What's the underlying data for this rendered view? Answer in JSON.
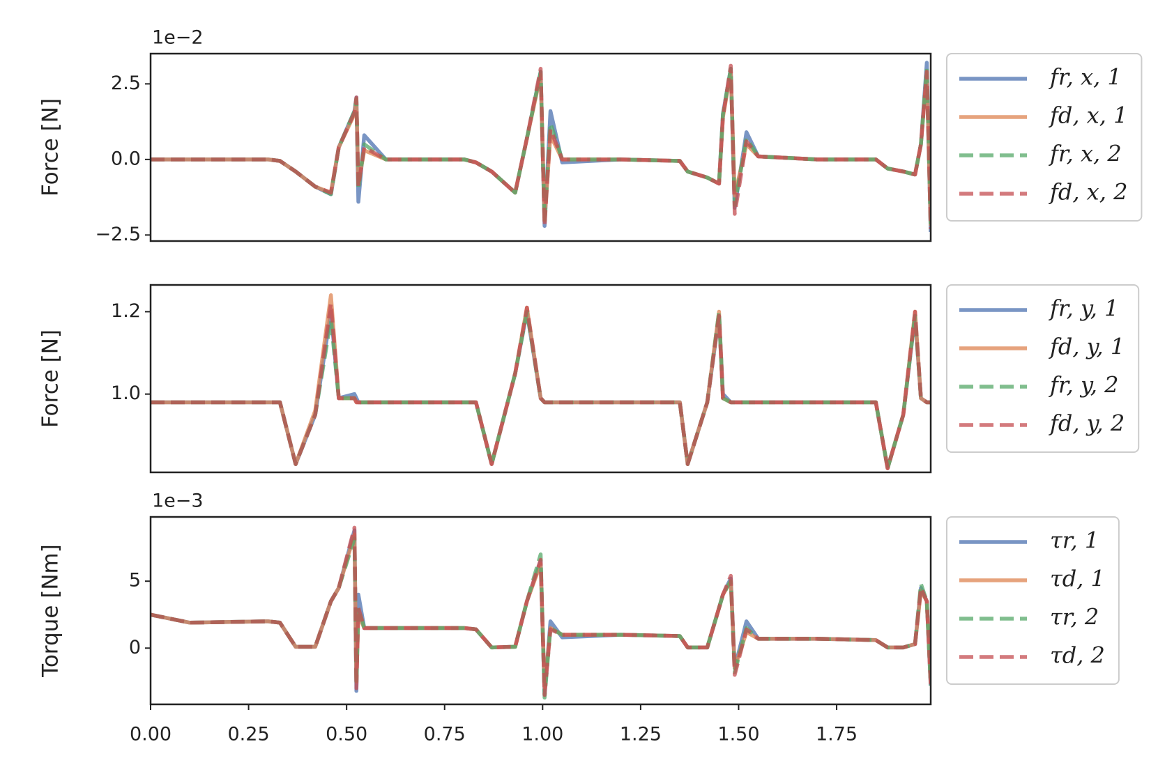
{
  "chart_data": [
    {
      "type": "line",
      "offset_label": "1e−2",
      "ylabel": "Force [N]",
      "x": [
        0,
        0.1,
        0.3,
        0.33,
        0.37,
        0.42,
        0.46,
        0.48,
        0.52,
        0.525,
        0.53,
        0.545,
        0.6,
        0.8,
        0.83,
        0.87,
        0.93,
        0.96,
        0.995,
        1.005,
        1.02,
        1.05,
        1.2,
        1.35,
        1.37,
        1.42,
        1.45,
        1.46,
        1.48,
        1.49,
        1.52,
        1.55,
        1.7,
        1.85,
        1.88,
        1.92,
        1.95,
        1.965,
        1.98,
        1.99
      ],
      "xlim": [
        0,
        1.99
      ],
      "ylim": [
        -2.7,
        3.5
      ],
      "yticks": [
        {
          "value": -2.5,
          "label": "−2.5"
        },
        {
          "value": 0,
          "label": "0.0"
        },
        2.5
      ],
      "legend": "outside right",
      "series": [
        {
          "name": "fr, x, 1",
          "color": "#4c72b0",
          "linestyle": "solid",
          "values": [
            0,
            0,
            0,
            -0.05,
            -0.4,
            -0.9,
            -1.15,
            0.4,
            1.6,
            2.05,
            -1.4,
            0.8,
            0,
            0,
            -0.1,
            -0.4,
            -1.1,
            0.7,
            2.9,
            -2.2,
            1.6,
            -0.1,
            0,
            -0.05,
            -0.4,
            -0.6,
            -0.8,
            1.5,
            3.0,
            -1.6,
            0.9,
            0.1,
            0,
            0,
            -0.3,
            -0.4,
            -0.5,
            0.5,
            3.2,
            -2.4
          ]
        },
        {
          "name": "fd, x, 1",
          "color": "#dd8452",
          "linestyle": "solid",
          "values": [
            0,
            0,
            0,
            -0.05,
            -0.4,
            -0.9,
            -1.1,
            0.4,
            1.5,
            2.0,
            -0.8,
            0.3,
            0,
            0,
            -0.1,
            -0.4,
            -1.1,
            0.7,
            2.8,
            -2.0,
            0.8,
            0,
            0,
            -0.05,
            -0.4,
            -0.6,
            -0.8,
            1.4,
            2.9,
            -1.2,
            0.5,
            0.1,
            0,
            0,
            -0.3,
            -0.4,
            -0.5,
            0.5,
            2.9,
            -2.2
          ]
        },
        {
          "name": "fr, x, 2",
          "color": "#55a868",
          "linestyle": "dashed",
          "values": [
            0,
            0,
            0,
            -0.05,
            -0.4,
            -0.9,
            -1.15,
            0.4,
            1.6,
            2.0,
            -1.0,
            0.5,
            0,
            0,
            -0.1,
            -0.4,
            -1.1,
            0.7,
            2.9,
            -2.1,
            1.2,
            0,
            0,
            -0.05,
            -0.4,
            -0.6,
            -0.8,
            1.5,
            3.0,
            -1.5,
            0.7,
            0.1,
            0,
            0,
            -0.3,
            -0.4,
            -0.5,
            0.5,
            3.0,
            -2.3
          ]
        },
        {
          "name": "fd, x, 2",
          "color": "#c44e52",
          "linestyle": "dashed",
          "values": [
            0,
            0,
            0,
            -0.05,
            -0.4,
            -0.9,
            -1.1,
            0.4,
            1.55,
            2.05,
            -0.9,
            0.4,
            0,
            0,
            -0.1,
            -0.4,
            -1.1,
            0.7,
            3.0,
            -2.2,
            1.0,
            0,
            0,
            -0.05,
            -0.4,
            -0.6,
            -0.8,
            1.4,
            3.1,
            -1.8,
            0.6,
            0.1,
            0,
            0,
            -0.3,
            -0.4,
            -0.5,
            0.5,
            2.9,
            -2.3
          ]
        }
      ]
    },
    {
      "type": "line",
      "ylabel": "Force [N]",
      "x": [
        0,
        0.1,
        0.3,
        0.33,
        0.37,
        0.42,
        0.46,
        0.48,
        0.52,
        0.525,
        0.53,
        0.545,
        0.6,
        0.8,
        0.83,
        0.87,
        0.93,
        0.96,
        0.995,
        1.005,
        1.02,
        1.05,
        1.2,
        1.35,
        1.37,
        1.42,
        1.45,
        1.46,
        1.48,
        1.49,
        1.52,
        1.55,
        1.7,
        1.85,
        1.88,
        1.92,
        1.95,
        1.965,
        1.98,
        1.99
      ],
      "xlim": [
        0,
        1.99
      ],
      "ylim": [
        0.81,
        1.265
      ],
      "yticks": [
        {
          "value": 1,
          "label": "1.0"
        },
        1.2
      ],
      "legend": "outside right",
      "series": [
        {
          "name": "fr, y, 1",
          "color": "#4c72b0",
          "linestyle": "solid",
          "values": [
            0.98,
            0.98,
            0.98,
            0.98,
            0.83,
            0.95,
            1.2,
            0.99,
            1.0,
            0.99,
            0.98,
            0.98,
            0.98,
            0.98,
            0.98,
            0.83,
            1.05,
            1.2,
            0.99,
            0.98,
            0.98,
            0.98,
            0.98,
            0.98,
            0.83,
            0.98,
            1.19,
            1.0,
            0.98,
            0.98,
            0.98,
            0.98,
            0.98,
            0.98,
            0.82,
            0.95,
            1.19,
            0.99,
            0.98,
            0.98
          ]
        },
        {
          "name": "fd, y, 1",
          "color": "#dd8452",
          "linestyle": "solid",
          "values": [
            0.98,
            0.98,
            0.98,
            0.98,
            0.83,
            0.96,
            1.24,
            0.99,
            0.99,
            0.98,
            0.98,
            0.98,
            0.98,
            0.98,
            0.98,
            0.83,
            1.05,
            1.21,
            0.99,
            0.98,
            0.98,
            0.98,
            0.98,
            0.98,
            0.83,
            0.98,
            1.2,
            0.99,
            0.98,
            0.98,
            0.98,
            0.98,
            0.98,
            0.98,
            0.82,
            0.95,
            1.2,
            0.99,
            0.98,
            0.98
          ]
        },
        {
          "name": "fr, y, 2",
          "color": "#55a868",
          "linestyle": "dashed",
          "values": [
            0.98,
            0.98,
            0.98,
            0.98,
            0.83,
            0.95,
            1.18,
            0.99,
            0.99,
            0.98,
            0.98,
            0.98,
            0.98,
            0.98,
            0.98,
            0.83,
            1.05,
            1.2,
            0.99,
            0.98,
            0.98,
            0.98,
            0.98,
            0.98,
            0.83,
            0.98,
            1.2,
            0.99,
            0.98,
            0.98,
            0.98,
            0.98,
            0.98,
            0.98,
            0.82,
            0.95,
            1.19,
            0.99,
            0.98,
            0.98
          ]
        },
        {
          "name": "fd, y, 2",
          "color": "#c44e52",
          "linestyle": "dashed",
          "values": [
            0.98,
            0.98,
            0.98,
            0.98,
            0.83,
            0.95,
            1.22,
            0.99,
            0.99,
            0.98,
            0.98,
            0.98,
            0.98,
            0.98,
            0.98,
            0.83,
            1.05,
            1.21,
            0.99,
            0.98,
            0.98,
            0.98,
            0.98,
            0.98,
            0.83,
            0.98,
            1.19,
            0.99,
            0.98,
            0.98,
            0.98,
            0.98,
            0.98,
            0.98,
            0.82,
            0.95,
            1.2,
            0.99,
            0.98,
            0.98
          ]
        }
      ]
    },
    {
      "type": "line",
      "offset_label": "1e−3",
      "ylabel": "Torque [Nm]",
      "x": [
        0,
        0.1,
        0.3,
        0.33,
        0.37,
        0.42,
        0.46,
        0.48,
        0.52,
        0.525,
        0.53,
        0.545,
        0.6,
        0.8,
        0.83,
        0.87,
        0.93,
        0.96,
        0.995,
        1.005,
        1.02,
        1.05,
        1.2,
        1.35,
        1.37,
        1.42,
        1.45,
        1.46,
        1.48,
        1.49,
        1.52,
        1.55,
        1.7,
        1.85,
        1.88,
        1.92,
        1.95,
        1.965,
        1.98,
        1.99
      ],
      "xlim": [
        0,
        1.99
      ],
      "ylim": [
        -4.2,
        9.8
      ],
      "yticks": [
        0,
        5
      ],
      "xticks": [
        {
          "value": 0,
          "label": "0.00"
        },
        {
          "value": 0.25,
          "label": "0.25"
        },
        {
          "value": 0.5,
          "label": "0.50"
        },
        {
          "value": 0.75,
          "label": "0.75"
        },
        {
          "value": 1,
          "label": "1.00"
        },
        {
          "value": 1.25,
          "label": "1.25"
        },
        {
          "value": 1.5,
          "label": "1.50"
        },
        {
          "value": 1.75,
          "label": "1.75"
        }
      ],
      "legend": "outside right",
      "series": [
        {
          "name": "τr, 1",
          "color": "#4c72b0",
          "linestyle": "solid",
          "values": [
            2.5,
            1.9,
            2.0,
            1.9,
            0.1,
            0.1,
            3.5,
            4.5,
            8.8,
            -3.2,
            4.0,
            1.5,
            1.5,
            1.5,
            1.4,
            0.05,
            0.1,
            3.5,
            6.5,
            -3.5,
            2.0,
            0.8,
            1.0,
            0.9,
            0.05,
            0.05,
            3.0,
            4.0,
            5.2,
            -1.5,
            2.0,
            0.7,
            0.7,
            0.6,
            0.05,
            0.05,
            0.3,
            4.5,
            3.5,
            -2.8
          ]
        },
        {
          "name": "τd, 1",
          "color": "#dd8452",
          "linestyle": "solid",
          "values": [
            2.5,
            1.9,
            2.0,
            1.9,
            0.1,
            0.1,
            3.5,
            4.5,
            8.5,
            -2.5,
            2.5,
            1.5,
            1.5,
            1.5,
            1.4,
            0.05,
            0.1,
            3.5,
            6.3,
            -3.0,
            1.5,
            1.0,
            1.0,
            0.9,
            0.05,
            0.05,
            3.0,
            4.0,
            5.0,
            -1.5,
            1.2,
            0.7,
            0.7,
            0.6,
            0.05,
            0.05,
            0.3,
            4.3,
            3.5,
            -2.6
          ]
        },
        {
          "name": "τr, 2",
          "color": "#55a868",
          "linestyle": "dashed",
          "values": [
            2.5,
            1.9,
            2.0,
            1.9,
            0.1,
            0.1,
            3.5,
            4.5,
            8.2,
            -2.8,
            3.0,
            1.5,
            1.5,
            1.5,
            1.4,
            0.05,
            0.1,
            3.5,
            7.0,
            -3.7,
            1.5,
            1.0,
            1.0,
            0.9,
            0.05,
            0.05,
            3.0,
            4.0,
            5.0,
            -1.8,
            1.5,
            0.7,
            0.7,
            0.6,
            0.05,
            0.05,
            0.3,
            4.8,
            3.5,
            -2.8
          ]
        },
        {
          "name": "τd, 2",
          "color": "#c44e52",
          "linestyle": "dashed",
          "values": [
            2.5,
            1.9,
            2.0,
            1.9,
            0.1,
            0.1,
            3.5,
            4.5,
            9.0,
            -3.0,
            3.0,
            1.5,
            1.5,
            1.5,
            1.4,
            0.05,
            0.1,
            3.5,
            6.6,
            -3.5,
            1.4,
            1.0,
            1.0,
            0.9,
            0.05,
            0.05,
            3.0,
            4.0,
            5.4,
            -2.0,
            1.4,
            0.7,
            0.7,
            0.6,
            0.05,
            0.05,
            0.3,
            4.5,
            3.5,
            -2.7
          ]
        }
      ]
    }
  ]
}
